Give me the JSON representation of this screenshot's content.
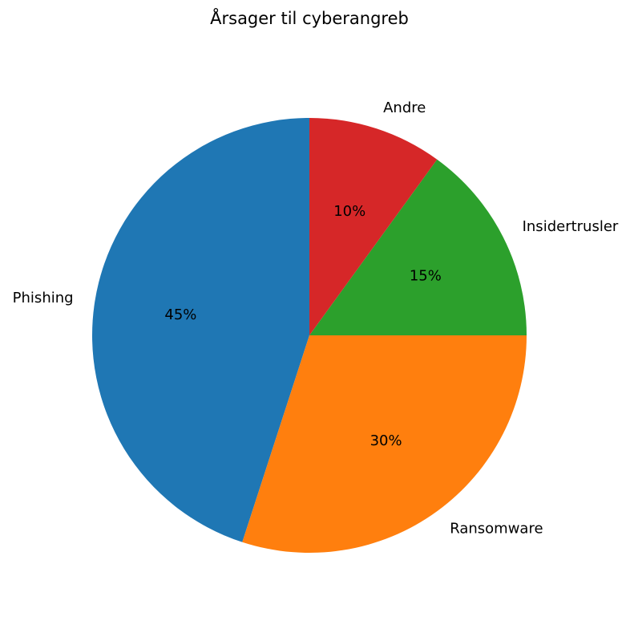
{
  "chart_data": {
    "type": "pie",
    "title": "Årsager til cyberangreb",
    "start_angle_deg": 90,
    "direction": "counterclockwise",
    "slices": [
      {
        "label": "Phishing",
        "value": 45,
        "pct_label": "45%",
        "color": "#1f77b4"
      },
      {
        "label": "Ransomware",
        "value": 30,
        "pct_label": "30%",
        "color": "#ff7f0e"
      },
      {
        "label": "Insidertrusler",
        "value": 15,
        "pct_label": "15%",
        "color": "#2ca02c"
      },
      {
        "label": "Andre",
        "value": 10,
        "pct_label": "10%",
        "color": "#d62728"
      }
    ]
  }
}
